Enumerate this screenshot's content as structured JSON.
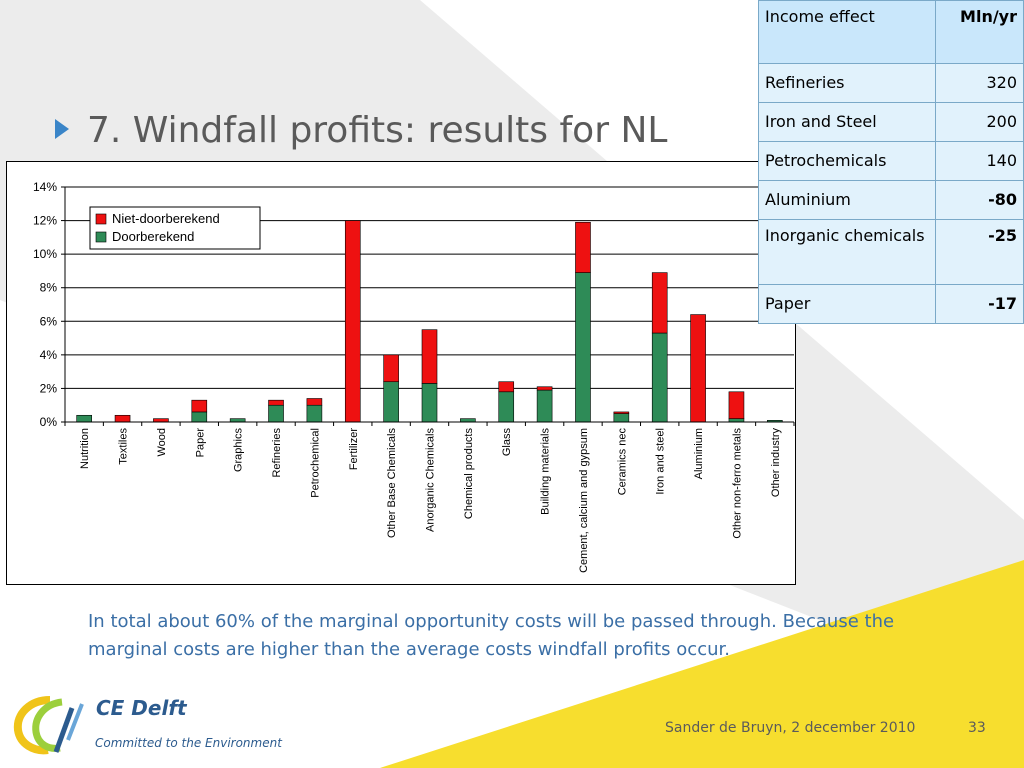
{
  "slide": {
    "title": "7. Windfall profits: results for NL",
    "body_text": "In total about 60% of the marginal opportunity costs will be passed through. Because the marginal costs are higher than the average costs windfall profits occur.",
    "footer": "Sander de Bruyn, 2 december 2010",
    "page_number": "33"
  },
  "logo": {
    "name": "CE Delft",
    "tagline": "Committed to the Environment"
  },
  "income_table": {
    "header": [
      "Income effect",
      "Mln/yr"
    ],
    "rows": [
      {
        "name": "Refineries",
        "value": "320",
        "bold": false
      },
      {
        "name": "Iron and Steel",
        "value": "200",
        "bold": false
      },
      {
        "name": "Petrochemicals",
        "value": "140",
        "bold": false
      },
      {
        "name": "Aluminium",
        "value": "-80",
        "bold": true
      },
      {
        "name": "Inorganic chemicals",
        "value": "-25",
        "bold": true
      },
      {
        "name": "Paper",
        "value": "-17",
        "bold": true
      }
    ]
  },
  "colors": {
    "niet_doorberekend": "#ee1111",
    "doorberekend": "#2e8b57",
    "accent": "#3a85c8"
  },
  "chart_data": {
    "type": "bar",
    "stacked": true,
    "categories": [
      "Nutrition",
      "Textiles",
      "Wood",
      "Paper",
      "Graphics",
      "Refineries",
      "Petrochemical",
      "Fertilizer",
      "Other Base Chemicals",
      "Anorganic Chemicals",
      "Chemical products",
      "Glass",
      "Building materials",
      "Cement, calcium and gypsum",
      "Ceramics nec",
      "Iron and steel",
      "Aluminium",
      "Other non-ferro metals",
      "Other industry"
    ],
    "series": [
      {
        "name": "Doorberekend",
        "color": "#2e8b57",
        "values": [
          0.4,
          0.0,
          0.0,
          0.6,
          0.2,
          1.0,
          1.0,
          0.0,
          2.4,
          2.3,
          0.2,
          1.8,
          1.9,
          8.9,
          0.5,
          5.3,
          0.0,
          0.2,
          0.1
        ]
      },
      {
        "name": "Niet-doorberekend",
        "color": "#ee1111",
        "values": [
          0.0,
          0.4,
          0.2,
          0.7,
          0.0,
          0.3,
          0.4,
          12.0,
          1.6,
          3.2,
          0.0,
          0.6,
          0.2,
          3.0,
          0.1,
          3.6,
          6.4,
          1.6,
          0.0
        ]
      }
    ],
    "y_ticks": [
      "0%",
      "2%",
      "4%",
      "6%",
      "8%",
      "10%",
      "12%",
      "14%"
    ],
    "ylim": [
      0,
      14
    ],
    "grid": true,
    "legend_position": "top-left",
    "legend_order": [
      "Niet-doorberekend",
      "Doorberekend"
    ],
    "title": "",
    "xlabel": "",
    "ylabel": ""
  }
}
